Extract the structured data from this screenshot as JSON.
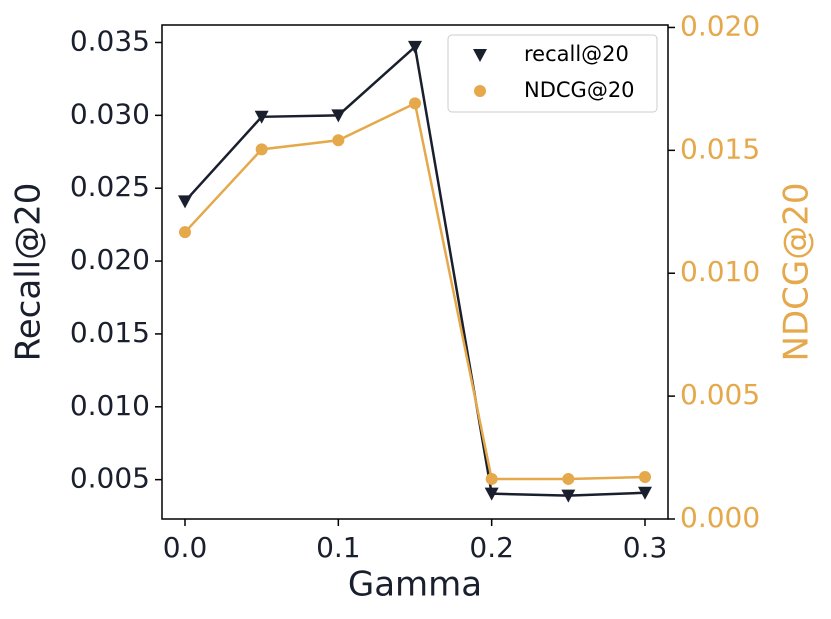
{
  "chart_data": {
    "type": "line",
    "x_label": "Gamma",
    "y_label": "Recall@20",
    "y2_label": "NDCG@20",
    "x": [
      0,
      0.05,
      0.1,
      0.15,
      0.2,
      0.25,
      0.3
    ],
    "series": [
      {
        "name": "recall@20",
        "color": "#1a1f2e",
        "marker": "triangle-down",
        "values": [
          0.0241,
          0.0299,
          0.03,
          0.0347,
          0.00404,
          0.0039,
          0.0041
        ]
      },
      {
        "name": "NDCG@20",
        "color": "#e5a84a",
        "marker": "circle",
        "axis": "y2",
        "values": [
          0.01167,
          0.01504,
          0.01541,
          0.01691,
          0.00163,
          0.00163,
          0.00171
        ]
      }
    ],
    "xlim": [
      -0.015,
      0.315
    ],
    "xticks": [
      {
        "value": 0,
        "label": "0.0"
      },
      0.1,
      0.2,
      0.3
    ],
    "ylim": [
      0.0023,
      0.0362
    ],
    "yticks": [
      0.005,
      {
        "value": 0.01,
        "label": "0.010"
      },
      0.015,
      {
        "value": 0.02,
        "label": "0.020"
      },
      0.025,
      {
        "value": 0.03,
        "label": "0.030"
      },
      0.035
    ],
    "y2lim": [
      0,
      0.0201
    ],
    "y2ticks": [
      {
        "value": 0,
        "label": "0.000"
      },
      0.005,
      {
        "value": 0.01,
        "label": "0.010"
      },
      0.015,
      {
        "value": 0.02,
        "label": "0.020"
      }
    ],
    "legend": "upper right"
  }
}
